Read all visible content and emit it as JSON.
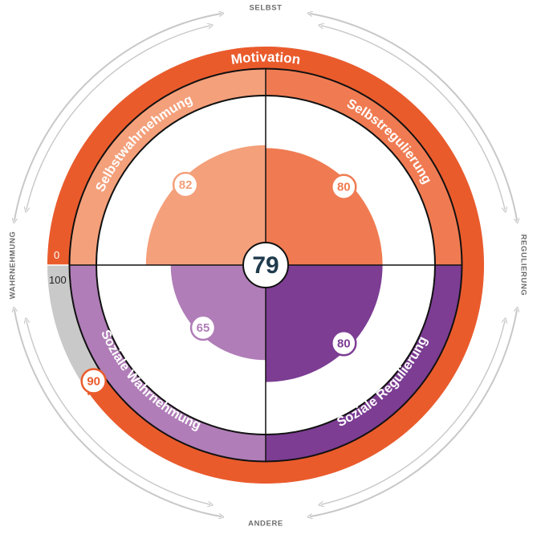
{
  "colors": {
    "motivation": "#EA5B2C",
    "selbstwahrnehmung": "#F4A07B",
    "selbstregulierung": "#F07B52",
    "soziale_wahrnehmung": "#B07DB8",
    "soziale_regulierung": "#7C3D93",
    "track_grey": "#C9C9C9",
    "arrow_grey": "#C8C8C8",
    "center_text": "#1F3B4D",
    "axis_label": "#6E6E6E"
  },
  "chart_data": {
    "type": "radial-quadrant",
    "center_value": "79",
    "outer_ring": {
      "label": "Motivation",
      "value": 90,
      "value_label": "90",
      "range": [
        0,
        100
      ],
      "scale_min_label": "0",
      "scale_max_label": "100"
    },
    "quadrants": [
      {
        "key": "selbstwahrnehmung",
        "label": "Selbstwahrnehmung",
        "value": 82,
        "value_label": "82",
        "position": "top-left"
      },
      {
        "key": "selbstregulierung",
        "label": "Selbstregulierung",
        "value": 80,
        "value_label": "80",
        "position": "top-right"
      },
      {
        "key": "soziale_regulierung",
        "label": "Soziale Regulierung",
        "value": 80,
        "value_label": "80",
        "position": "bottom-right"
      },
      {
        "key": "soziale_wahrnehmung",
        "label": "Soziale Wahrnehmung",
        "value": 65,
        "value_label": "65",
        "position": "bottom-left"
      }
    ],
    "axes": {
      "top": "SELBST",
      "bottom": "ANDERE",
      "left": "WAHRNEHMUNG",
      "right": "REGULIERUNG"
    }
  }
}
